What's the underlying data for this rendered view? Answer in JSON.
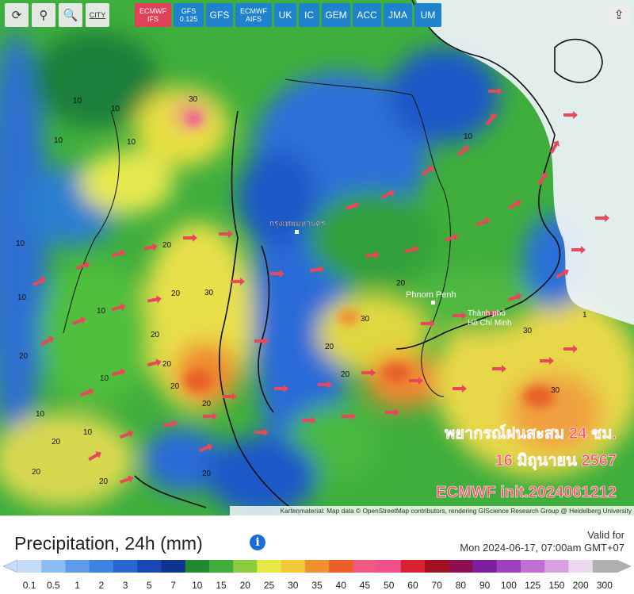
{
  "toolbar": {
    "tools": [
      "CITY"
    ],
    "models": [
      [
        "ECMWF",
        "IFS"
      ],
      [
        "GFS",
        "0.125"
      ],
      [
        "GFS"
      ],
      [
        "ECMWF",
        "AIFS"
      ],
      [
        "UK"
      ],
      [
        "IC"
      ],
      [
        "GEM"
      ],
      [
        "ACC"
      ],
      [
        "JMA"
      ],
      [
        "UM"
      ]
    ]
  },
  "map": {
    "places": [
      "กรุงเทพมหานคร",
      "Phnom Penh",
      [
        "Thành phố",
        "Hồ Chí Minh"
      ]
    ],
    "contours": [
      "10",
      "10",
      "10",
      "30",
      "20",
      "10",
      "10",
      "20",
      "20",
      "10",
      "20",
      "30",
      "20",
      "20",
      "10",
      "20",
      "10",
      "20",
      "20",
      "10",
      "20",
      "20",
      "20",
      "30",
      "30",
      "30",
      "20",
      "10",
      "10",
      "20",
      "1"
    ],
    "overlay": [
      "พยากรณ์ฝนสะสม 24 ชม.",
      "16  มิถุนายน 2567",
      "ECMWF init.2024061212"
    ],
    "attribution": "Kartenmaterial: Map data © OpenStreetMap contributors, rendering GIScience Research Group @ Heidelberg University"
  },
  "legend": {
    "title": "Precipitation, 24h (mm)",
    "valid_label": "Valid for",
    "valid_time": "Mon 2024-06-17, 07:00am GMT+07",
    "scale": [
      "0.1",
      "0.5",
      "1",
      "2",
      "3",
      "5",
      "7",
      "10",
      "15",
      "20",
      "25",
      "30",
      "35",
      "40",
      "45",
      "50",
      "60",
      "70",
      "80",
      "90",
      "100",
      "125",
      "150",
      "200",
      "300"
    ]
  }
}
